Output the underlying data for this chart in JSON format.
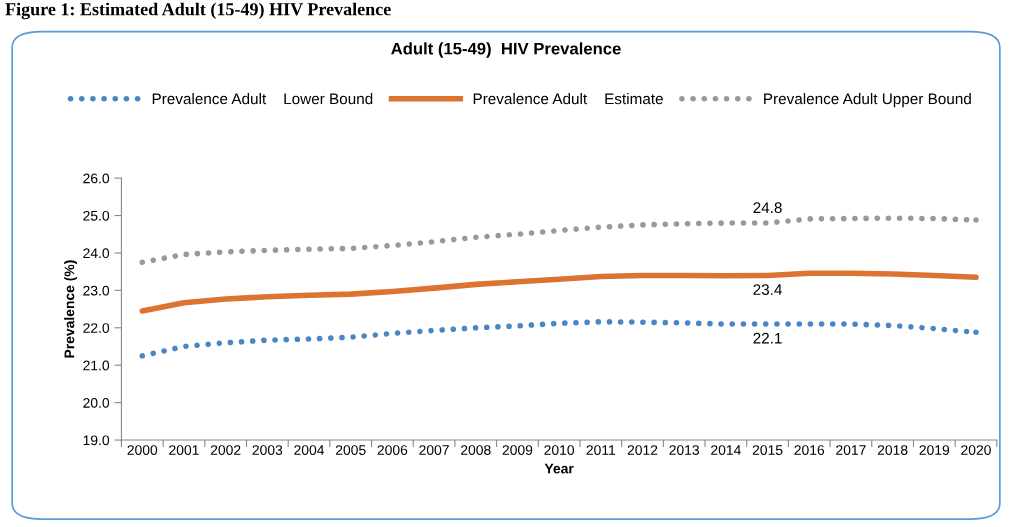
{
  "chart_data": {
    "type": "line",
    "title": "Adult (15-49)  HIV Prevalence",
    "xlabel": "Year",
    "ylabel": "Prevalence (%)",
    "annotations": [
      "Figure 1: Estimated Adult (15-49) HIV Prevalence"
    ],
    "categories": [
      "2000",
      "2001",
      "2002",
      "2003",
      "2004",
      "2005",
      "2006",
      "2007",
      "2008",
      "2009",
      "2010",
      "2011",
      "2012",
      "2013",
      "2014",
      "2015",
      "2016",
      "2017",
      "2018",
      "2019",
      "2020"
    ],
    "series": [
      {
        "name": "Prevalence Adult    Lower Bound",
        "color": "#4a86c5",
        "line_style": "dotted",
        "values": [
          21.25,
          21.5,
          21.6,
          21.67,
          21.7,
          21.75,
          21.85,
          21.93,
          22.0,
          22.05,
          22.12,
          22.16,
          22.15,
          22.13,
          22.1,
          22.1,
          22.1,
          22.1,
          22.06,
          21.98,
          21.88
        ],
        "value_labels": [
          null,
          null,
          null,
          null,
          null,
          null,
          null,
          null,
          null,
          null,
          null,
          null,
          null,
          null,
          null,
          "22.1",
          null,
          null,
          null,
          null,
          null
        ]
      },
      {
        "name": "Prevalence Adult    Estimate",
        "color": "#dd7331",
        "line_style": "solid",
        "values": [
          22.45,
          22.67,
          22.77,
          22.83,
          22.87,
          22.9,
          22.97,
          23.06,
          23.16,
          23.23,
          23.3,
          23.37,
          23.4,
          23.4,
          23.39,
          23.4,
          23.46,
          23.46,
          23.44,
          23.4,
          23.35
        ],
        "value_labels": [
          null,
          null,
          null,
          null,
          null,
          null,
          null,
          null,
          null,
          null,
          null,
          null,
          null,
          null,
          null,
          "23.4",
          null,
          null,
          null,
          null,
          null
        ]
      },
      {
        "name": "Prevalence Adult Upper Bound",
        "color": "#999999",
        "line_style": "dotted",
        "values": [
          23.75,
          23.96,
          24.03,
          24.07,
          24.1,
          24.12,
          24.2,
          24.3,
          24.42,
          24.5,
          24.6,
          24.69,
          24.75,
          24.78,
          24.8,
          24.8,
          24.91,
          24.92,
          24.93,
          24.92,
          24.88
        ],
        "value_labels": [
          null,
          null,
          null,
          null,
          null,
          null,
          null,
          null,
          null,
          null,
          null,
          null,
          null,
          null,
          null,
          "24.8",
          null,
          null,
          null,
          null,
          null
        ]
      }
    ],
    "ylim": [
      19.0,
      26.0
    ],
    "yticks": [
      {
        "value": 19,
        "label": "19.0"
      },
      {
        "value": 20,
        "label": "20.0"
      },
      {
        "value": 21,
        "label": "21.0"
      },
      {
        "value": 22,
        "label": "22.0"
      },
      {
        "value": 23,
        "label": "23.0"
      },
      {
        "value": 24,
        "label": "24.0"
      },
      {
        "value": 25,
        "label": "25.0"
      },
      {
        "value": 26,
        "label": "26.0"
      }
    ],
    "grid": false,
    "legend": "top",
    "marker": "none"
  }
}
